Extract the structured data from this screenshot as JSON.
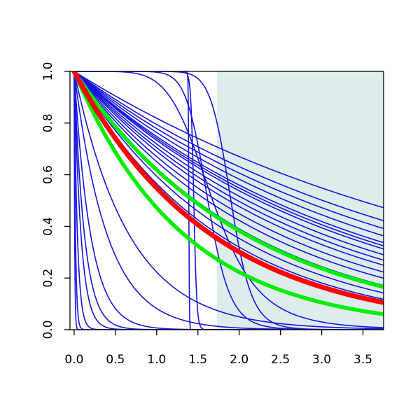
{
  "chart_data": {
    "type": "line",
    "title": "",
    "xlabel": "",
    "ylabel": "",
    "xlim": [
      -0.05,
      3.75
    ],
    "ylim": [
      0,
      1
    ],
    "x_ticks": [
      "0.0",
      "0.5",
      "1.0",
      "1.5",
      "2.0",
      "2.5",
      "3.0",
      "3.5"
    ],
    "y_ticks": [
      "0.0",
      "0.2",
      "0.4",
      "0.6",
      "0.8",
      "1.0"
    ],
    "shaded_region": {
      "x_from": 1.73,
      "x_to": 3.75,
      "color": "#deecec"
    },
    "colors": {
      "samples": "#1515e0",
      "mean": "#ff0000",
      "bounds": "#00ee00",
      "frame": "#000000"
    },
    "series": [
      {
        "group": "samples",
        "rate": 0.2
      },
      {
        "group": "samples",
        "rate": 0.23
      },
      {
        "group": "samples",
        "rate": 0.25
      },
      {
        "group": "samples",
        "rate": 0.27
      },
      {
        "group": "samples",
        "rate": 0.29
      },
      {
        "group": "samples",
        "rate": 0.3
      },
      {
        "group": "samples",
        "rate": 0.31
      },
      {
        "group": "samples",
        "rate": 0.33
      },
      {
        "group": "samples",
        "rate": 0.35
      },
      {
        "group": "samples",
        "rate": 0.37
      },
      {
        "group": "samples",
        "rate": 0.4
      },
      {
        "group": "samples",
        "rate": 0.43
      },
      {
        "group": "samples",
        "rate": 0.47
      },
      {
        "group": "samples",
        "rate": 0.52
      },
      {
        "group": "samples",
        "rate": 0.57
      },
      {
        "group": "samples",
        "rate": 1.5
      },
      {
        "group": "samples",
        "rate": 2.5
      },
      {
        "group": "samples",
        "rate": 5.0
      },
      {
        "group": "samples",
        "rate": 8.0
      },
      {
        "group": "samples",
        "rate": 12.0
      },
      {
        "group": "samples",
        "rate": 25.0
      },
      {
        "group": "samples",
        "rate": 60.0
      },
      {
        "group": "samples",
        "rate": 150.0
      },
      {
        "group": "samples",
        "scale": 1.9,
        "shape": 15
      },
      {
        "group": "samples",
        "scale": 1.62,
        "shape": 12
      },
      {
        "group": "samples",
        "scale": 1.68,
        "shape": 6
      },
      {
        "group": "samples",
        "scale": 1.45,
        "shape": 80
      },
      {
        "group": "samples",
        "scale": 1.39,
        "shape": 400
      },
      {
        "group": "mean",
        "rate": 0.6
      },
      {
        "group": "bounds",
        "rate": 0.48
      },
      {
        "group": "bounds",
        "rate": 0.75
      }
    ]
  }
}
